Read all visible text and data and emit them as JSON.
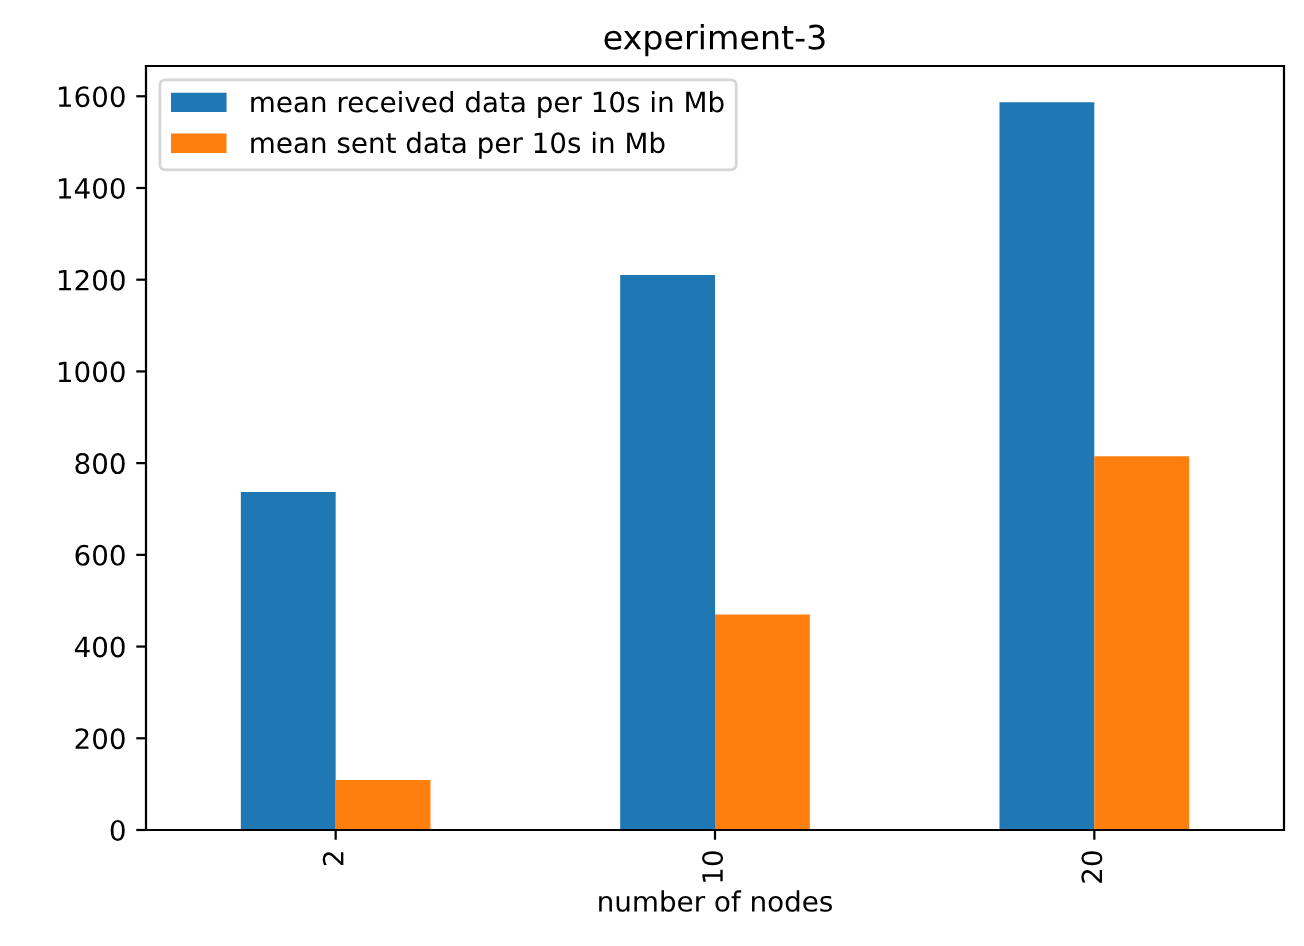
{
  "chart_data": {
    "type": "bar",
    "title": "experiment-3",
    "xlabel": "number of nodes",
    "categories": [
      "2",
      "10",
      "20"
    ],
    "series": [
      {
        "name": "mean received data per 10s in Mb",
        "color": "#1f77b4",
        "values": [
          737,
          1210,
          1587
        ]
      },
      {
        "name": "mean sent data per 10s in Mb",
        "color": "#ff7f0e",
        "values": [
          109,
          470,
          815
        ]
      }
    ],
    "ylim": [
      0,
      1666
    ],
    "yticks": [
      0,
      200,
      400,
      600,
      800,
      1000,
      1200,
      1400,
      1600
    ],
    "legend": "top left",
    "grid": false
  }
}
